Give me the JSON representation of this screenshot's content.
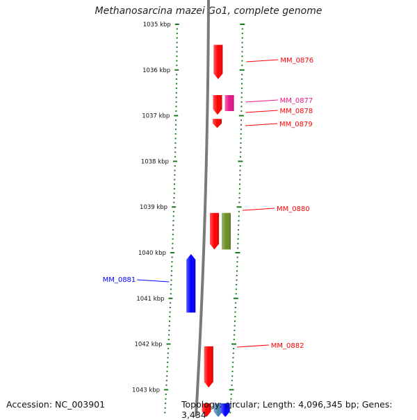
{
  "title": "Methanosarcina mazei Go1, complete genome",
  "footer": {
    "accession": "Accession: NC_003901",
    "summary": "Topology: circular; Length: 4,096,345 bp; Genes: 3,434"
  },
  "axis": {
    "start_kbp": 1035,
    "end_kbp": 1043.6,
    "tick_labels": [
      "1035 kbp",
      "1036 kbp",
      "1037 kbp",
      "1038 kbp",
      "1039 kbp",
      "1040 kbp",
      "1041 kbp",
      "1042 kbp",
      "1043 kbp"
    ]
  },
  "colors": {
    "backbone": "#7a7a7a",
    "ticks": "#1a7a1a",
    "red_gene": "#ff0000",
    "magenta_gene": "#e8158c",
    "olive_gene": "#6b8e23",
    "blue_gene": "#0000ff",
    "light_blue_gene": "#4682b4"
  },
  "genes": [
    {
      "label": "MM_0876",
      "start_kbp": 1035.45,
      "end_kbp": 1036.2,
      "track": 1,
      "color": "#ff0000",
      "side": "right"
    },
    {
      "label": "MM_0877",
      "start_kbp": 1036.55,
      "end_kbp": 1036.9,
      "track": 2,
      "color": "#e8158c",
      "side": "right"
    },
    {
      "label": "MM_0878",
      "start_kbp": 1036.55,
      "end_kbp": 1036.98,
      "track": 1,
      "color": "#ff0000",
      "side": "right"
    },
    {
      "label": "MM_0879",
      "start_kbp": 1037.07,
      "end_kbp": 1037.27,
      "track": 1,
      "color": "#ff0000",
      "side": "right"
    },
    {
      "label": "MM_0880",
      "start_kbp": 1039.13,
      "end_kbp": 1039.93,
      "track": 1,
      "color": "#ff0000",
      "side": "right"
    },
    {
      "label": "",
      "start_kbp": 1039.13,
      "end_kbp": 1039.93,
      "track": 2,
      "color": "#6b8e23",
      "side": "none"
    },
    {
      "label": "MM_0881",
      "start_kbp": 1040.03,
      "end_kbp": 1041.31,
      "track": -1,
      "color": "#0000ff",
      "side": "left"
    },
    {
      "label": "MM_0882",
      "start_kbp": 1042.05,
      "end_kbp": 1042.95,
      "track": 1,
      "color": "#ff0000",
      "side": "right"
    },
    {
      "label": "",
      "start_kbp": 1043.3,
      "end_kbp": 1043.6,
      "track": 1,
      "color": "#ff0000",
      "side": "none"
    },
    {
      "label": "",
      "start_kbp": 1043.3,
      "end_kbp": 1043.6,
      "track": 2,
      "color": "#4682b4",
      "side": "none"
    },
    {
      "label": "",
      "start_kbp": 1043.3,
      "end_kbp": 1043.6,
      "track": 2.6,
      "color": "#0000ff",
      "side": "none"
    }
  ]
}
